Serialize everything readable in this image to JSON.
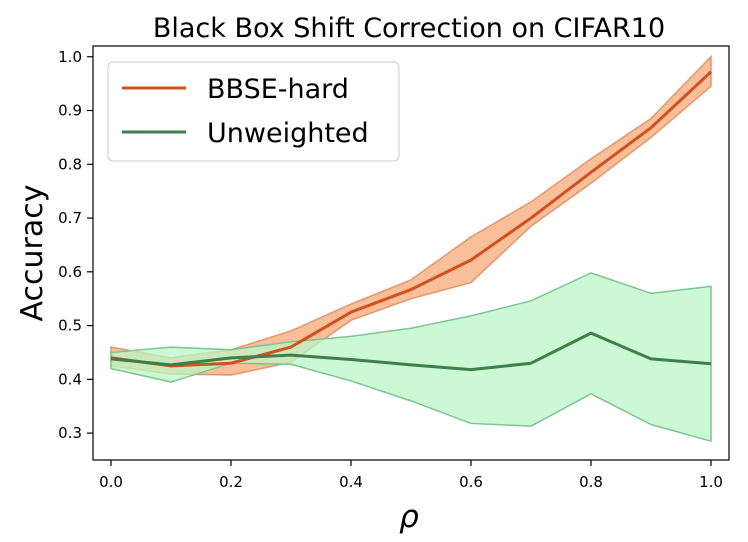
{
  "chart_data": {
    "type": "line",
    "title": "Black Box Shift Correction on CIFAR10",
    "xlabel": "ρ",
    "ylabel": "Accuracy",
    "xlim": [
      -0.03,
      1.03
    ],
    "ylim": [
      0.25,
      1.02
    ],
    "xticks": [
      0.0,
      0.2,
      0.4,
      0.6,
      0.8,
      1.0
    ],
    "xtick_labels": [
      "0.0",
      "0.2",
      "0.4",
      "0.6",
      "0.8",
      "1.0"
    ],
    "yticks": [
      0.3,
      0.4,
      0.5,
      0.6,
      0.7,
      0.8,
      0.9,
      1.0
    ],
    "ytick_labels": [
      "0.3",
      "0.4",
      "0.5",
      "0.6",
      "0.7",
      "0.8",
      "0.9",
      "1.0"
    ],
    "grid": false,
    "legend_position": "top-left",
    "x": [
      0.0,
      0.1,
      0.2,
      0.3,
      0.4,
      0.5,
      0.6,
      0.7,
      0.8,
      0.9,
      1.0
    ],
    "series": [
      {
        "name": "BBSE-hard",
        "color": "#d2501d",
        "band_fill": "#f7a878",
        "band_edge": "#e8956a",
        "values": [
          0.44,
          0.425,
          0.43,
          0.46,
          0.525,
          0.567,
          0.622,
          0.7,
          0.785,
          0.868,
          0.972
        ],
        "lower": [
          0.425,
          0.41,
          0.408,
          0.432,
          0.51,
          0.55,
          0.58,
          0.685,
          0.765,
          0.85,
          0.945
        ],
        "upper": [
          0.46,
          0.44,
          0.455,
          0.49,
          0.54,
          0.585,
          0.665,
          0.73,
          0.81,
          0.885,
          1.0
        ]
      },
      {
        "name": "Unweighted",
        "color": "#3f7f4c",
        "band_fill": "#b8f7c4",
        "band_edge": "#7fc493",
        "values": [
          0.438,
          0.427,
          0.44,
          0.445,
          0.437,
          0.427,
          0.418,
          0.43,
          0.486,
          0.438,
          0.429
        ],
        "lower": [
          0.42,
          0.395,
          0.43,
          0.428,
          0.397,
          0.36,
          0.318,
          0.313,
          0.373,
          0.316,
          0.285
        ],
        "upper": [
          0.45,
          0.46,
          0.455,
          0.47,
          0.48,
          0.495,
          0.518,
          0.546,
          0.598,
          0.56,
          0.573
        ]
      }
    ]
  }
}
